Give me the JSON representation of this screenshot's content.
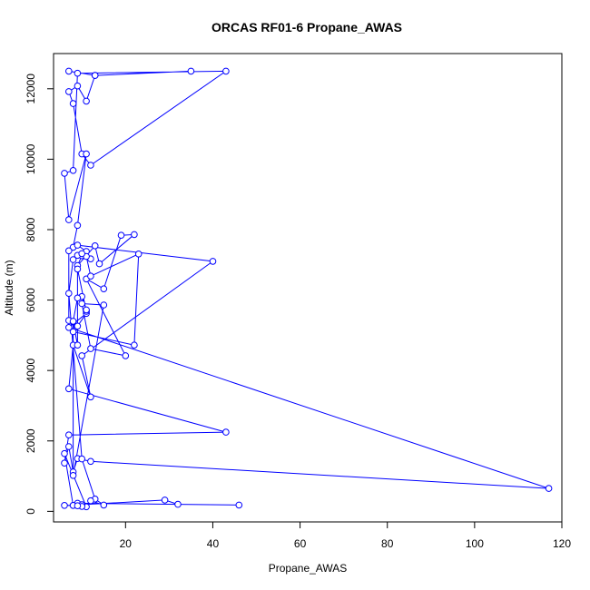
{
  "chart_data": {
    "type": "line",
    "title": "ORCAS RF01-6 Propane_AWAS",
    "xlabel": "Propane_AWAS",
    "ylabel": "Altitude (m)",
    "xlim": [
      3.5,
      120
    ],
    "ylim": [
      -300,
      13000
    ],
    "xticks": [
      20,
      40,
      60,
      80,
      100,
      120
    ],
    "yticks": [
      0,
      2000,
      4000,
      6000,
      8000,
      10000,
      12000
    ],
    "grid": false,
    "legend": "none",
    "series": [
      {
        "color": "#0000ff",
        "marker": "open-circle",
        "x": [
          7,
          13,
          35,
          13,
          11,
          9,
          7,
          8,
          10,
          12,
          43,
          9,
          8,
          6,
          7,
          11,
          9,
          8,
          7,
          7,
          9,
          11,
          7,
          117,
          12,
          9,
          8,
          7,
          6,
          7,
          43,
          7,
          8,
          12,
          10,
          40,
          9,
          11,
          12,
          10,
          9,
          13,
          14,
          22,
          19,
          15,
          11,
          20,
          12,
          10,
          15,
          8,
          8,
          9,
          9,
          11,
          11,
          10,
          9,
          8,
          8,
          22,
          23,
          12,
          11,
          9,
          10,
          8,
          7,
          10,
          13,
          15,
          12,
          11,
          6,
          8,
          9,
          46,
          32,
          29,
          10,
          10,
          8,
          6,
          9
        ],
        "y": [
          12500,
          12380,
          12500,
          12380,
          11650,
          12080,
          11920,
          11580,
          10150,
          9830,
          12500,
          12440,
          9680,
          9600,
          8280,
          10150,
          8120,
          7500,
          7400,
          5420,
          5260,
          5620,
          5220,
          650,
          1420,
          1500,
          1120,
          1840,
          1370,
          2170,
          2250,
          3480,
          4720,
          3250,
          4420,
          7100,
          7560,
          7380,
          7170,
          7260,
          6980,
          7540,
          7030,
          7860,
          7840,
          6320,
          6600,
          4420,
          4620,
          5900,
          5860,
          1020,
          5380,
          4720,
          6880,
          5680,
          5720,
          6100,
          6060,
          5400,
          5100,
          4720,
          7310,
          6680,
          7240,
          7270,
          7320,
          7150,
          6190,
          1490,
          350,
          180,
          300,
          130,
          1640,
          170,
          230,
          180,
          200,
          320,
          190,
          140,
          170,
          170,
          160
        ]
      }
    ]
  }
}
